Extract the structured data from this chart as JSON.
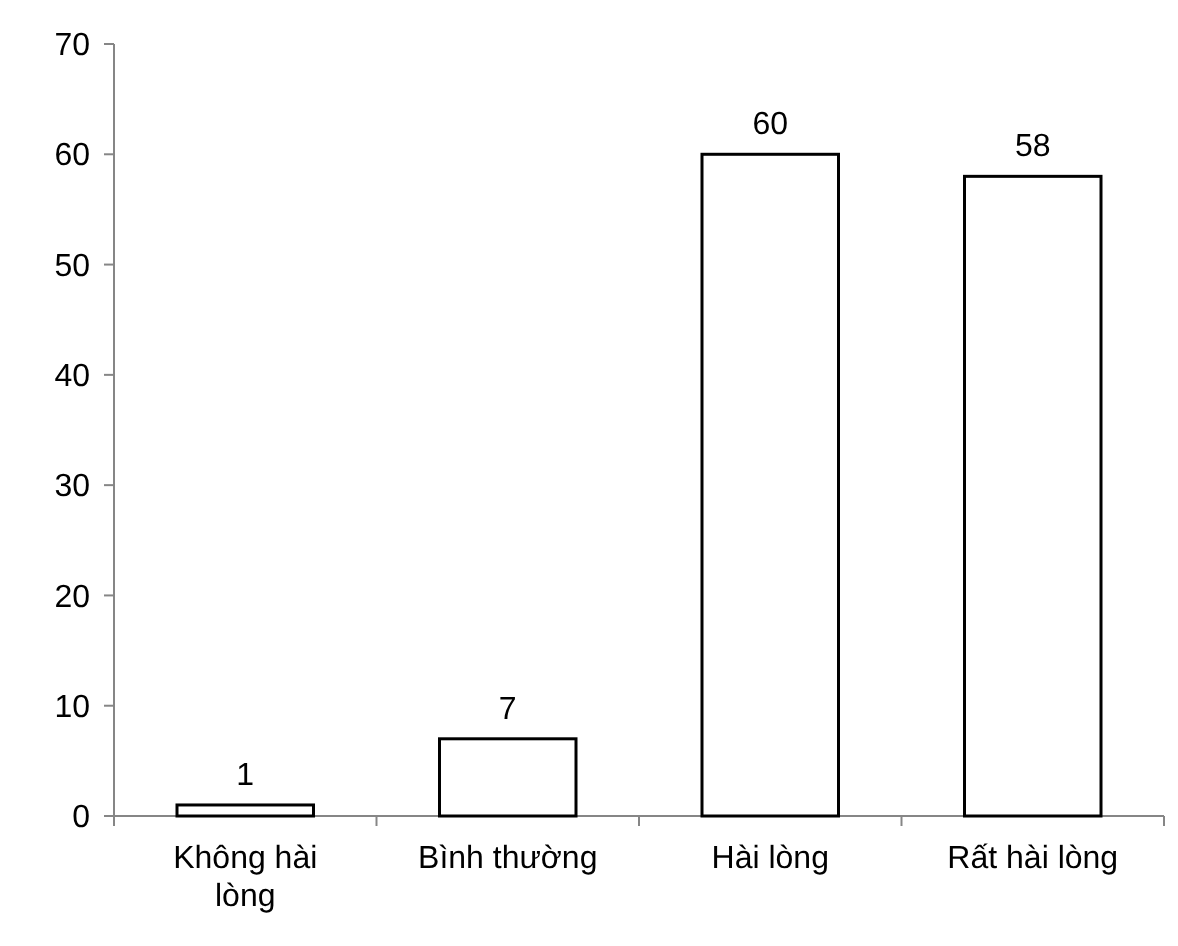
{
  "chart_data": {
    "type": "bar",
    "categories": [
      "Không hài lòng",
      "Bình thường",
      "Hài lòng",
      "Rất hài lòng"
    ],
    "values": [
      1,
      7,
      60,
      58
    ],
    "color": "#ffffff",
    "ylim": [
      0,
      70
    ],
    "yticks": [
      0,
      10,
      20,
      30,
      40,
      50,
      60,
      70
    ],
    "data_labels": true
  }
}
